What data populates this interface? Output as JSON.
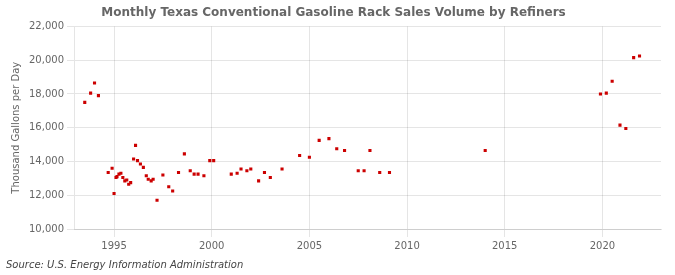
{
  "chart_data": {
    "type": "scatter",
    "title": "Monthly Texas Conventional Gasoline Rack Sales Volume by Refiners",
    "ylabel": "Thousand Gallons per Day",
    "annotation": "Source: U.S. Energy Information Administration",
    "color": "#cc0000",
    "marker": "square",
    "grid": true,
    "xlim": [
      1993.0,
      2023.0
    ],
    "xticks": [
      1995,
      2000,
      2005,
      2010,
      2015,
      2020
    ],
    "ylim": [
      10000,
      22000
    ],
    "yticks": [
      {
        "value": 10000,
        "label": "10,000"
      },
      {
        "value": 12000,
        "label": "12,000"
      },
      {
        "value": 14000,
        "label": "14,000"
      },
      {
        "value": 16000,
        "label": "16,000"
      },
      {
        "value": 18000,
        "label": "18,000"
      },
      {
        "value": 20000,
        "label": "20,000"
      },
      {
        "value": 22000,
        "label": "22,000"
      }
    ],
    "x": [
      1993.5,
      1993.8,
      1994.0,
      1994.2,
      1994.7,
      1994.9,
      1995.0,
      1995.1,
      1995.15,
      1995.25,
      1995.35,
      1995.45,
      1995.55,
      1995.65,
      1995.75,
      1995.85,
      1996.0,
      1996.1,
      1996.2,
      1996.35,
      1996.5,
      1996.65,
      1996.75,
      1996.9,
      1997.0,
      1997.2,
      1997.5,
      1997.8,
      1998.0,
      1998.3,
      1998.6,
      1998.9,
      1999.1,
      1999.3,
      1999.6,
      1999.9,
      2000.1,
      2001.0,
      2001.3,
      2001.5,
      2001.8,
      2002.0,
      2002.4,
      2002.7,
      2003.0,
      2003.6,
      2004.5,
      2005.0,
      2005.5,
      2006.0,
      2006.4,
      2006.8,
      2007.5,
      2007.8,
      2008.1,
      2008.6,
      2009.1,
      2014.0,
      2019.9,
      2020.2,
      2020.5,
      2020.9,
      2021.2,
      2021.6,
      2021.9
    ],
    "values": [
      17500,
      18050,
      18650,
      17900,
      13350,
      13600,
      12100,
      13050,
      13100,
      13250,
      13300,
      13050,
      12850,
      12900,
      12650,
      12750,
      14150,
      14950,
      14050,
      13850,
      13650,
      13150,
      12950,
      12850,
      12950,
      11700,
      13200,
      12500,
      12250,
      13350,
      14450,
      13450,
      13250,
      13250,
      13150,
      14050,
      14050,
      13250,
      13300,
      13550,
      13450,
      13550,
      12850,
      13350,
      13050,
      13550,
      14350,
      14250,
      15250,
      15350,
      14750,
      14650,
      13450,
      13450,
      14650,
      13350,
      13350,
      14650,
      18000,
      18050,
      18750,
      16150,
      15950,
      20150,
      20250
    ]
  }
}
